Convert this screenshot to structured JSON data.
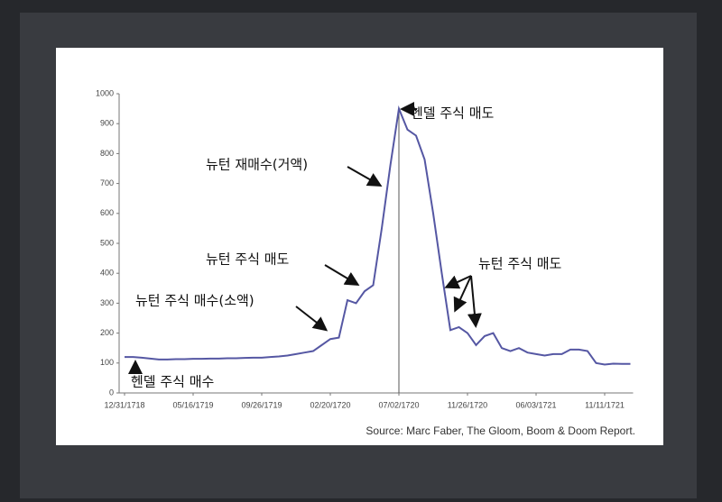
{
  "chart_data": {
    "type": "line",
    "source": "Source: Marc Faber, The Gloom, Boom & Doom Report.",
    "annotations": [
      "헨델 주식 매도",
      "뉴턴 재매수(거액)",
      "뉴턴 주식 매도",
      "뉴턴 주식 매수(소액)",
      "헨델 주식 매수",
      "뉴턴 주식 매도"
    ],
    "categories": [
      "12/31/1718",
      null,
      null,
      null,
      null,
      null,
      null,
      null,
      "05/16/1719",
      null,
      null,
      null,
      null,
      null,
      null,
      null,
      "09/26/1719",
      null,
      null,
      null,
      null,
      null,
      null,
      null,
      "02/20/1720",
      null,
      null,
      null,
      null,
      null,
      null,
      null,
      "07/02/1720",
      null,
      null,
      null,
      null,
      null,
      null,
      null,
      "11/26/1720",
      null,
      null,
      null,
      null,
      null,
      null,
      null,
      "06/03/1721",
      null,
      null,
      null,
      null,
      null,
      null,
      null,
      "11/11/1721",
      null,
      null,
      null
    ],
    "series": [
      {
        "color": "#5557a3",
        "values": [
          120,
          120,
          118,
          115,
          112,
          112,
          113,
          113,
          114,
          114,
          115,
          115,
          116,
          116,
          117,
          118,
          118,
          120,
          122,
          125,
          130,
          135,
          140,
          160,
          180,
          185,
          310,
          300,
          340,
          360,
          550,
          760,
          950,
          880,
          860,
          780,
          600,
          400,
          210,
          220,
          200,
          160,
          190,
          200,
          150,
          140,
          150,
          135,
          130,
          125,
          130,
          130,
          145,
          145,
          140,
          100,
          95,
          98,
          97,
          97
        ]
      }
    ],
    "ylim": [
      0,
      1000
    ],
    "yticks": [
      0,
      100,
      200,
      300,
      400,
      500,
      600,
      700,
      800,
      900,
      1000
    ],
    "marker_line_index": 32
  }
}
